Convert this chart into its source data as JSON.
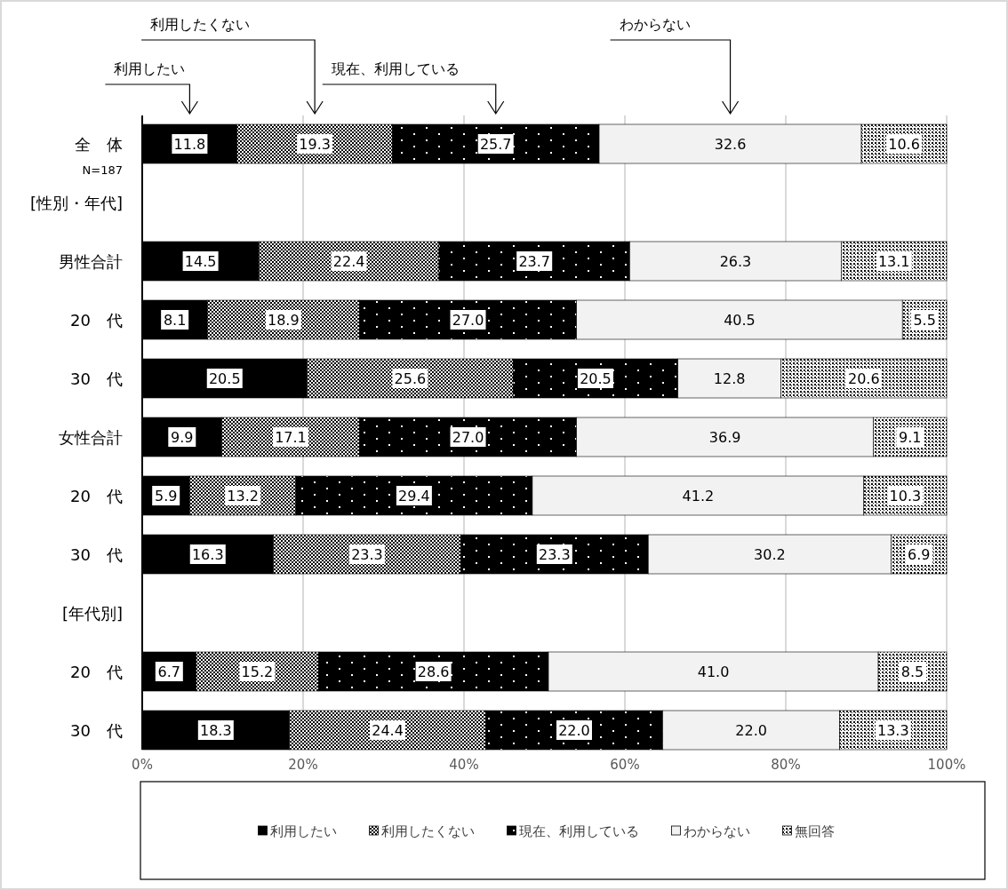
{
  "chart_data": {
    "type": "bar",
    "orientation": "horizontal",
    "stacked": true,
    "grid": "x",
    "legend": "bottom",
    "categories": [
      "全　体",
      "[性別・年代]",
      "男性合計",
      "20　代",
      "30　代",
      "女性合計",
      "20　代",
      "30　代",
      "[年代別]",
      "20　代",
      "30　代"
    ],
    "xlim": [
      0,
      100
    ],
    "xticks": [
      {
        "value": 0,
        "label": "0%"
      },
      {
        "value": 20,
        "label": "20%"
      },
      {
        "value": 40,
        "label": "40%"
      },
      {
        "value": 60,
        "label": "60%"
      },
      {
        "value": 80,
        "label": "80%"
      },
      {
        "value": 100,
        "label": "100%"
      }
    ],
    "series": [
      {
        "name": "利用したい",
        "color": "#000000",
        "values": [
          11.8,
          null,
          14.5,
          8.1,
          20.5,
          9.9,
          5.9,
          16.3,
          null,
          6.7,
          18.3
        ],
        "value_labels": [
          "11.8",
          null,
          "14.5",
          "8.1",
          "20.5",
          "9.9",
          "5.9",
          "16.3",
          null,
          "6.7",
          "18.3"
        ]
      },
      {
        "name": "利用したくない",
        "color": "#000000",
        "values": [
          19.3,
          null,
          22.4,
          18.9,
          25.6,
          17.1,
          13.2,
          23.3,
          null,
          15.2,
          24.4
        ],
        "value_labels": [
          "19.3",
          null,
          "22.4",
          "18.9",
          "25.6",
          "17.1",
          "13.2",
          "23.3",
          null,
          "15.2",
          "24.4"
        ]
      },
      {
        "name": "現在、利用している",
        "color": "#000000",
        "values": [
          25.7,
          null,
          23.7,
          27.0,
          20.5,
          27.0,
          29.4,
          23.3,
          null,
          28.6,
          22.0
        ],
        "value_labels": [
          "25.7",
          null,
          "23.7",
          "27.0",
          "20.5",
          "27.0",
          "29.4",
          "23.3",
          null,
          "28.6",
          "22.0"
        ]
      },
      {
        "name": "わからない",
        "color": "#f2f2f2",
        "values": [
          32.6,
          null,
          26.3,
          40.5,
          12.8,
          36.9,
          41.2,
          30.2,
          null,
          41.0,
          22.0
        ],
        "value_labels": [
          "32.6",
          null,
          "26.3",
          "40.5",
          "12.8",
          "36.9",
          "41.2",
          "30.2",
          null,
          "41.0",
          "22.0"
        ]
      },
      {
        "name": "無回答",
        "color": "#000000",
        "values": [
          10.6,
          null,
          13.1,
          5.5,
          20.6,
          9.1,
          10.3,
          6.9,
          null,
          8.5,
          13.3
        ],
        "value_labels": [
          "10.6",
          null,
          "13.1",
          "5.5",
          "20.6",
          "9.1",
          "10.3",
          "6.9",
          null,
          "8.5",
          "13.3"
        ]
      }
    ],
    "annotations": [
      "N=187",
      "利用したい",
      "利用したくない",
      "現在、利用している",
      "わからない"
    ]
  }
}
